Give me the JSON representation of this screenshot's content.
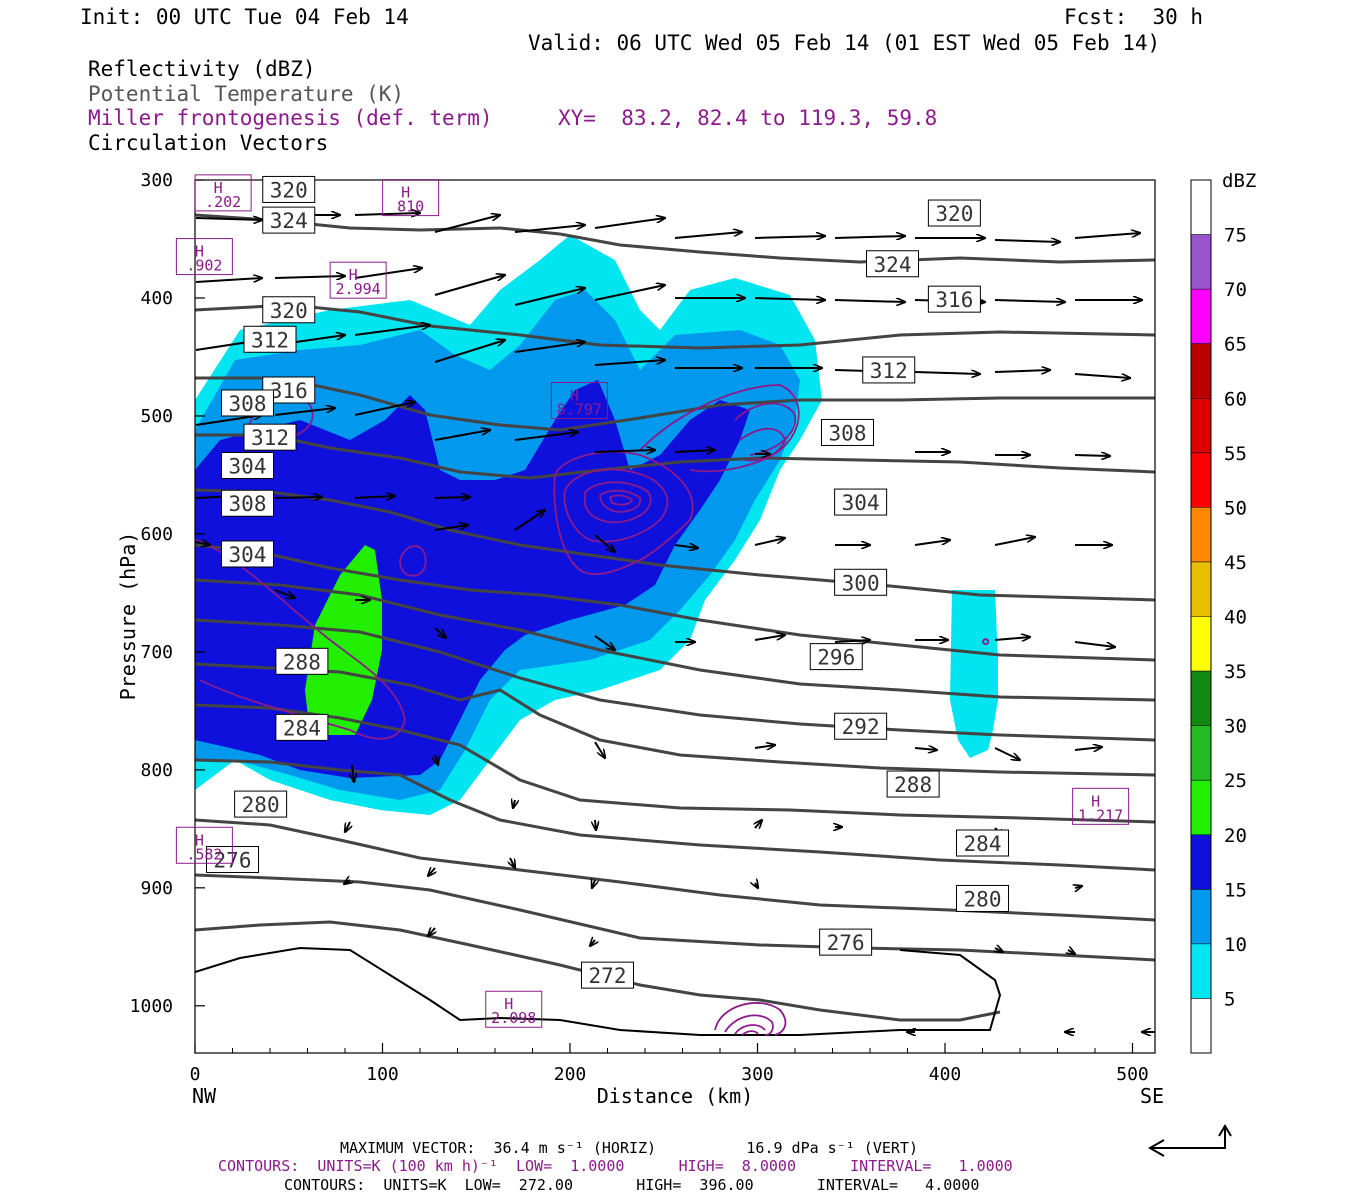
{
  "header": {
    "init": "Init: 00 UTC Tue 04 Feb 14",
    "fcst": "Fcst:  30 h",
    "valid": "Valid: 06 UTC Wed 05 Feb 14 (01 EST Wed 05 Feb 14)",
    "field1": "Reflectivity (dBZ)",
    "field2": "Potential Temperature (K)",
    "field3": "Miller frontogenesis (def. term)",
    "xy": "XY=  83.2, 82.4 to 119.3, 59.8",
    "field4": "Circulation Vectors"
  },
  "footer": {
    "maxvec_line": "MAXIMUM VECTOR:  36.4 m s⁻¹ (HORIZ)          16.9 dPa s⁻¹ (VERT)",
    "contours1": "CONTOURS:  UNITS=K (100 km h)⁻¹  LOW=  1.0000      HIGH=  8.0000      INTERVAL=   1.0000",
    "contours2": "CONTOURS:  UNITS=K  LOW=  272.00       HIGH=  396.00       INTERVAL=   4.0000"
  },
  "colors": {
    "cyan": "#00e5f0",
    "lightblue": "#0099ee",
    "blue": "#1010dd",
    "green": "#22ee00",
    "theta": "#444444",
    "frontogenesis": "#8b1a8b"
  },
  "chart_data": {
    "type": "cross-section",
    "xlabel": "Distance (km)",
    "ylabel": "Pressure (hPa)",
    "x_ticks": [
      0,
      100,
      200,
      300,
      400,
      500
    ],
    "y_ticks": [
      300,
      400,
      500,
      600,
      700,
      800,
      900,
      1000
    ],
    "xlim": [
      0,
      512
    ],
    "ylim": [
      300,
      1040
    ],
    "left_end_label": "NW",
    "right_end_label": "SE",
    "colorbar": {
      "unit": "dBZ",
      "levels": [
        5,
        10,
        15,
        20,
        25,
        30,
        35,
        40,
        45,
        50,
        55,
        60,
        65,
        70,
        75
      ],
      "colors": [
        "#ffffff",
        "#00e5f0",
        "#0099ee",
        "#1010dd",
        "#22ee00",
        "#22bb22",
        "#118811",
        "#ffff00",
        "#e8c000",
        "#ff8800",
        "#ff0000",
        "#dd0000",
        "#bb0000",
        "#ff00ff",
        "#9955cc",
        "#ffffff"
      ]
    },
    "theta_labels": [
      {
        "x": 50,
        "p": 334,
        "label": "324"
      },
      {
        "x": 372,
        "p": 371,
        "label": "324"
      },
      {
        "x": 50,
        "p": 308,
        "label": "320"
      },
      {
        "x": 50,
        "p": 410,
        "label": "320"
      },
      {
        "x": 405,
        "p": 328,
        "label": "320"
      },
      {
        "x": 50,
        "p": 478,
        "label": "316"
      },
      {
        "x": 405,
        "p": 401,
        "label": "316"
      },
      {
        "x": 40,
        "p": 435,
        "label": "312"
      },
      {
        "x": 40,
        "p": 518,
        "label": "312"
      },
      {
        "x": 370,
        "p": 461,
        "label": "312"
      },
      {
        "x": 28,
        "p": 489,
        "label": "308"
      },
      {
        "x": 28,
        "p": 574,
        "label": "308"
      },
      {
        "x": 348,
        "p": 514,
        "label": "308"
      },
      {
        "x": 28,
        "p": 542,
        "label": "304"
      },
      {
        "x": 28,
        "p": 617,
        "label": "304"
      },
      {
        "x": 355,
        "p": 573,
        "label": "304"
      },
      {
        "x": 355,
        "p": 641,
        "label": "300"
      },
      {
        "x": 57,
        "p": 708,
        "label": "288"
      },
      {
        "x": 342,
        "p": 704,
        "label": "296"
      },
      {
        "x": 57,
        "p": 764,
        "label": "284"
      },
      {
        "x": 355,
        "p": 763,
        "label": "292"
      },
      {
        "x": 35,
        "p": 829,
        "label": "280"
      },
      {
        "x": 383,
        "p": 812,
        "label": "288"
      },
      {
        "x": 20,
        "p": 876,
        "label": "276"
      },
      {
        "x": 420,
        "p": 862,
        "label": "284"
      },
      {
        "x": 420,
        "p": 909,
        "label": "280"
      },
      {
        "x": 347,
        "p": 946,
        "label": "276"
      },
      {
        "x": 220,
        "p": 974,
        "label": "272"
      }
    ],
    "frontogenesis_maxima": [
      {
        "x": 15,
        "p": 316,
        "label": ".202"
      },
      {
        "x": 115,
        "p": 320,
        "label": "810"
      },
      {
        "x": 5,
        "p": 370,
        "label": ".902"
      },
      {
        "x": 87,
        "p": 390,
        "label": "2.994"
      },
      {
        "x": 205,
        "p": 492,
        "label": "8.797"
      },
      {
        "x": 170,
        "p": 1008,
        "label": "2.098"
      },
      {
        "x": 483,
        "p": 836,
        "label": "1.217"
      },
      {
        "x": 5,
        "p": 869,
        "label": ".582"
      }
    ]
  }
}
